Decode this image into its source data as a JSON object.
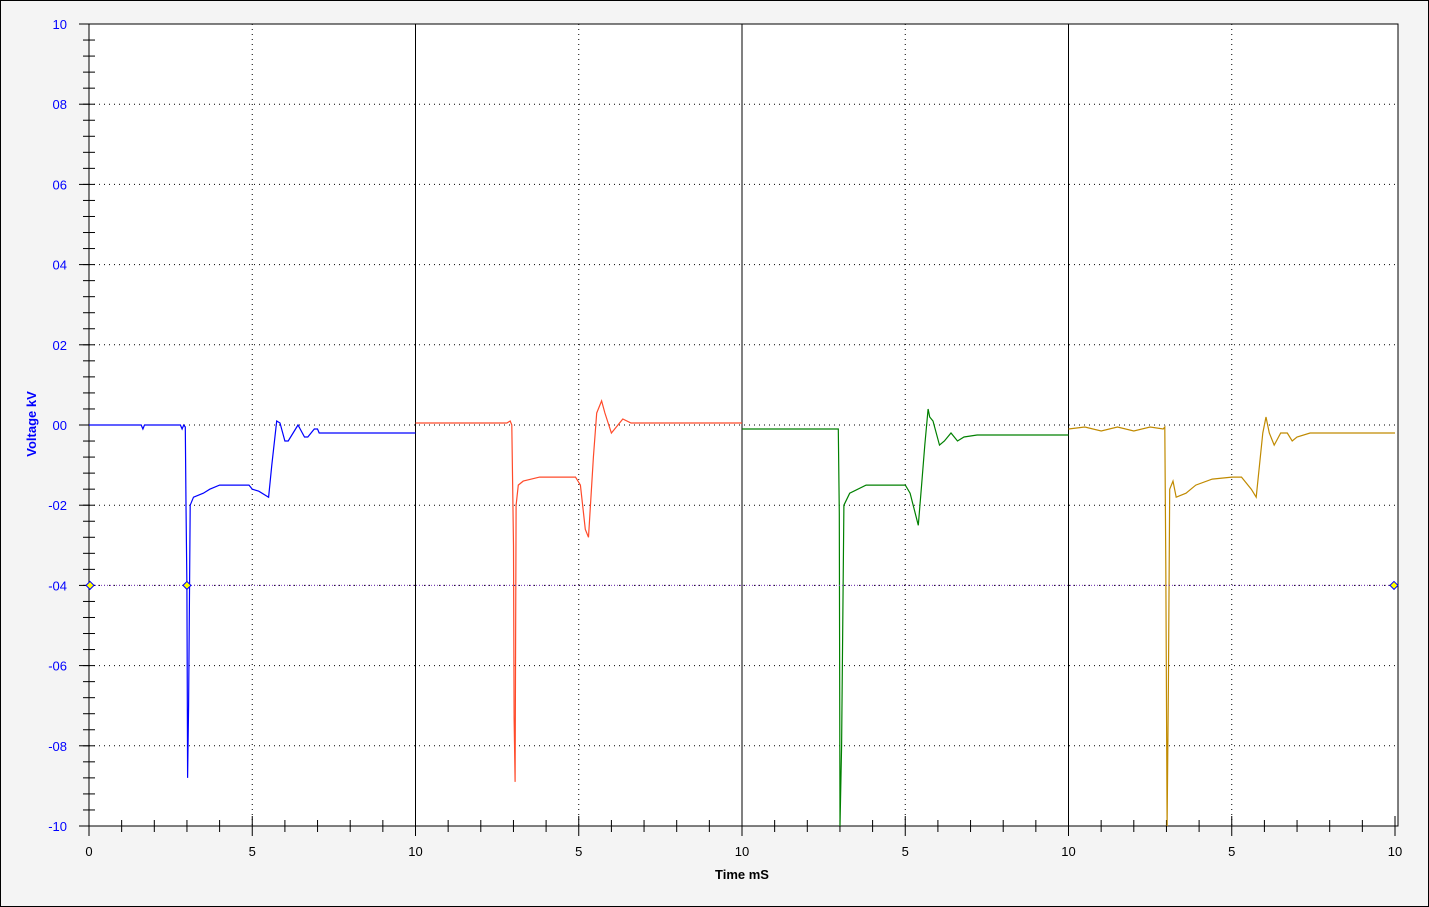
{
  "chart_data": {
    "type": "line",
    "xlabel": "Time mS",
    "ylabel": "Voltage kV",
    "ylim": [
      -10,
      10
    ],
    "y_tick_labels": [
      "10",
      "08",
      "06",
      "04",
      "02",
      "00",
      "-02",
      "-04",
      "-06",
      "-08",
      "-10"
    ],
    "y_tick_values": [
      10,
      8,
      6,
      4,
      2,
      0,
      -2,
      -4,
      -6,
      -8,
      -10
    ],
    "panels_xlim": [
      0,
      10
    ],
    "x_tick_labels": [
      "0",
      "5",
      "10",
      "5",
      "10",
      "5",
      "10",
      "5",
      "10"
    ],
    "grid": true,
    "cursor_level": -4,
    "cursor_color": "#7f3fbf",
    "marker_color": "#ffff00",
    "series": [
      {
        "color": "#0000ff",
        "points": [
          [
            0,
            0
          ],
          [
            1.6,
            0
          ],
          [
            1.65,
            -0.1
          ],
          [
            1.7,
            0
          ],
          [
            2.8,
            0
          ],
          [
            2.85,
            -0.1
          ],
          [
            2.9,
            0
          ],
          [
            2.95,
            -0.05
          ],
          [
            2.97,
            -2
          ],
          [
            3.0,
            -4
          ],
          [
            3.02,
            -8.8
          ],
          [
            3.05,
            -7
          ],
          [
            3.1,
            -2
          ],
          [
            3.2,
            -1.8
          ],
          [
            3.5,
            -1.7
          ],
          [
            3.7,
            -1.6
          ],
          [
            4.0,
            -1.5
          ],
          [
            4.9,
            -1.5
          ],
          [
            5.0,
            -1.6
          ],
          [
            5.2,
            -1.65
          ],
          [
            5.5,
            -1.8
          ],
          [
            5.6,
            -1
          ],
          [
            5.75,
            0.1
          ],
          [
            5.85,
            0.05
          ],
          [
            6.0,
            -0.4
          ],
          [
            6.1,
            -0.4
          ],
          [
            6.4,
            0
          ],
          [
            6.6,
            -0.3
          ],
          [
            6.7,
            -0.3
          ],
          [
            6.9,
            -0.1
          ],
          [
            7.0,
            -0.1
          ],
          [
            7.05,
            -0.2
          ],
          [
            10,
            -0.2
          ]
        ]
      },
      {
        "color": "#ff4a2a",
        "points": [
          [
            0,
            0.05
          ],
          [
            2.8,
            0.05
          ],
          [
            2.9,
            0.1
          ],
          [
            2.95,
            0
          ],
          [
            3.0,
            -3
          ],
          [
            3.02,
            -7.3
          ],
          [
            3.05,
            -8.9
          ],
          [
            3.08,
            -2
          ],
          [
            3.15,
            -1.5
          ],
          [
            3.3,
            -1.4
          ],
          [
            3.8,
            -1.3
          ],
          [
            4.9,
            -1.3
          ],
          [
            5.05,
            -1.5
          ],
          [
            5.2,
            -2.6
          ],
          [
            5.3,
            -2.8
          ],
          [
            5.45,
            -0.8
          ],
          [
            5.55,
            0.3
          ],
          [
            5.7,
            0.6
          ],
          [
            5.8,
            0.3
          ],
          [
            6.0,
            -0.2
          ],
          [
            6.1,
            -0.1
          ],
          [
            6.35,
            0.15
          ],
          [
            6.6,
            0.05
          ],
          [
            10,
            0.05
          ]
        ]
      },
      {
        "color": "#008000",
        "points": [
          [
            0,
            -0.1
          ],
          [
            2.95,
            -0.1
          ],
          [
            2.98,
            -2.2
          ],
          [
            3.0,
            -10
          ],
          [
            3.05,
            -8
          ],
          [
            3.12,
            -2
          ],
          [
            3.3,
            -1.7
          ],
          [
            3.8,
            -1.5
          ],
          [
            5.0,
            -1.5
          ],
          [
            5.15,
            -1.7
          ],
          [
            5.4,
            -2.5
          ],
          [
            5.5,
            -1.5
          ],
          [
            5.6,
            -0.5
          ],
          [
            5.7,
            0.4
          ],
          [
            5.75,
            0.2
          ],
          [
            5.85,
            0.1
          ],
          [
            6.05,
            -0.5
          ],
          [
            6.2,
            -0.4
          ],
          [
            6.4,
            -0.2
          ],
          [
            6.6,
            -0.4
          ],
          [
            6.8,
            -0.3
          ],
          [
            7.2,
            -0.25
          ],
          [
            10,
            -0.25
          ]
        ]
      },
      {
        "color": "#c08a00",
        "points": [
          [
            0,
            -0.1
          ],
          [
            0.5,
            -0.05
          ],
          [
            1.0,
            -0.15
          ],
          [
            1.5,
            -0.05
          ],
          [
            2.0,
            -0.15
          ],
          [
            2.5,
            -0.05
          ],
          [
            2.9,
            -0.1
          ],
          [
            2.95,
            -0.05
          ],
          [
            2.98,
            -3.5
          ],
          [
            3.02,
            -10
          ],
          [
            3.06,
            -6.5
          ],
          [
            3.1,
            -1.6
          ],
          [
            3.2,
            -1.4
          ],
          [
            3.3,
            -1.8
          ],
          [
            3.6,
            -1.7
          ],
          [
            3.9,
            -1.5
          ],
          [
            4.4,
            -1.35
          ],
          [
            5.0,
            -1.3
          ],
          [
            5.3,
            -1.3
          ],
          [
            5.6,
            -1.6
          ],
          [
            5.75,
            -1.8
          ],
          [
            5.85,
            -1
          ],
          [
            5.95,
            -0.2
          ],
          [
            6.05,
            0.2
          ],
          [
            6.15,
            -0.2
          ],
          [
            6.3,
            -0.5
          ],
          [
            6.5,
            -0.2
          ],
          [
            6.7,
            -0.2
          ],
          [
            6.85,
            -0.4
          ],
          [
            7.0,
            -0.3
          ],
          [
            7.4,
            -0.2
          ],
          [
            10,
            -0.2
          ]
        ]
      }
    ]
  }
}
